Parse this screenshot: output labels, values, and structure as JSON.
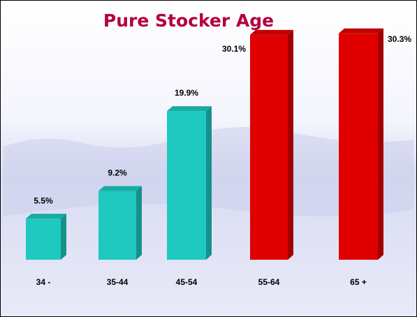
{
  "chart_data": {
    "type": "bar3d",
    "title": "Pure Stocker Age",
    "categories": [
      "34 -",
      "35-44",
      "45-54",
      "55-64",
      "65 +"
    ],
    "values": [
      5.5,
      9.2,
      19.9,
      30.1,
      30.3
    ],
    "value_labels": [
      "5.5%",
      "9.2%",
      "19.9%",
      "30.1%",
      "30.3%"
    ],
    "colors": [
      "#1fc9c0",
      "#1fc9c0",
      "#1fc9c0",
      "#e00000",
      "#e00000"
    ]
  }
}
